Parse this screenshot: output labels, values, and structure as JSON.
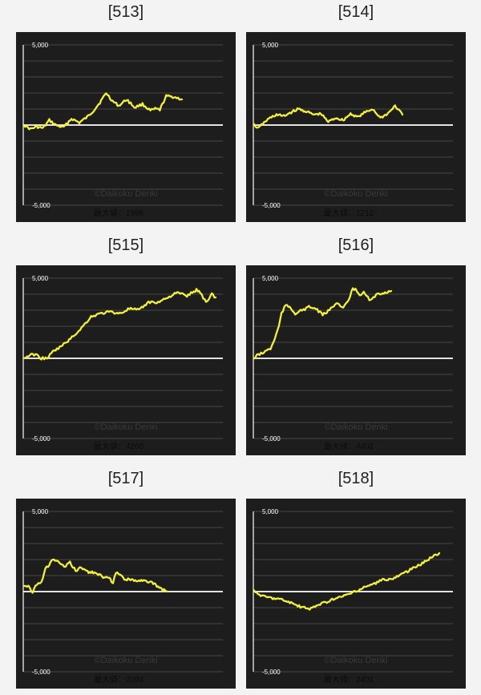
{
  "colors": {
    "background": "#f3f3f3",
    "panel": "#1d1d1d",
    "grid": "#474747",
    "zero_line": "#ffffff",
    "axis": "#ffffff",
    "series": "#f2f03c",
    "label_text": "#222222",
    "watermark": "#3a3a3a",
    "footer_text": "#0c0c0c"
  },
  "chart_data": [
    {
      "type": "line",
      "label": "[513]",
      "watermark": "©Daikoku Denki",
      "footer": "最大値：1998",
      "tick_labels": [
        "5,000",
        "-5,000"
      ],
      "ylim": [
        -5000,
        5000
      ],
      "x": [
        0,
        4,
        8,
        12,
        16,
        20,
        25,
        30,
        35,
        40,
        44,
        48,
        52,
        56,
        60,
        65,
        70,
        75,
        80,
        83,
        86,
        90,
        95,
        100
      ],
      "y": [
        0,
        -250,
        -100,
        -200,
        300,
        0,
        -150,
        400,
        150,
        500,
        900,
        1400,
        1998,
        1500,
        1200,
        1600,
        1100,
        1300,
        900,
        1000,
        950,
        1800,
        1750,
        1600
      ]
    },
    {
      "type": "line",
      "label": "[514]",
      "watermark": "©Daikoku Denki",
      "footer": "最大値：1212",
      "tick_labels": [
        "5,000",
        "-5,000"
      ],
      "ylim": [
        -5000,
        5000
      ],
      "x": [
        0,
        3,
        6,
        10,
        15,
        20,
        25,
        30,
        35,
        40,
        45,
        50,
        55,
        60,
        65,
        70,
        75,
        80,
        85,
        90,
        95,
        100
      ],
      "y": [
        0,
        -200,
        100,
        400,
        650,
        550,
        800,
        1000,
        850,
        650,
        700,
        200,
        450,
        300,
        700,
        500,
        800,
        1000,
        450,
        700,
        1200,
        650
      ]
    },
    {
      "type": "line",
      "label": "[515]",
      "watermark": "©Daikoku Denki",
      "footer": "最大値：4260",
      "tick_labels": [
        "5,000",
        "-5,000"
      ],
      "ylim": [
        -5000,
        5000
      ],
      "x": [
        0,
        3,
        6,
        9,
        12,
        15,
        20,
        25,
        30,
        35,
        40,
        45,
        50,
        55,
        60,
        65,
        70,
        75,
        80,
        85,
        90,
        92,
        95,
        98,
        100
      ],
      "y": [
        0,
        200,
        250,
        0,
        0,
        400,
        800,
        1300,
        1900,
        2600,
        2800,
        2900,
        2800,
        3100,
        3000,
        3500,
        3500,
        3800,
        4100,
        3900,
        4260,
        4100,
        3500,
        4000,
        3800
      ]
    },
    {
      "type": "line",
      "label": "[516]",
      "watermark": "©Daikoku Denki",
      "footer": "最大値：4402",
      "tick_labels": [
        "5,000",
        "-5,000"
      ],
      "ylim": [
        -5000,
        5000
      ],
      "x": [
        0,
        3,
        6,
        9,
        12,
        15,
        18,
        20,
        23,
        26,
        30,
        35,
        40,
        45,
        50,
        55,
        60,
        65,
        70,
        72,
        75,
        78,
        80,
        85,
        90,
        100
      ],
      "y": [
        0,
        250,
        300,
        500,
        600,
        1200,
        2000,
        2800,
        3300,
        3200,
        2800,
        3000,
        3200,
        3100,
        2700,
        3000,
        3500,
        3100,
        3800,
        4402,
        4200,
        3900,
        4100,
        3600,
        4000,
        4200
      ]
    },
    {
      "type": "line",
      "label": "[517]",
      "watermark": "©Daikoku Denki",
      "footer": "最大値：2094",
      "tick_labels": [
        "5,000",
        "-5,000"
      ],
      "ylim": [
        -5000,
        5000
      ],
      "x": [
        0,
        3,
        6,
        9,
        12,
        15,
        20,
        25,
        28,
        32,
        36,
        40,
        45,
        50,
        55,
        60,
        62,
        64,
        66,
        70,
        75,
        80,
        85,
        90,
        95,
        100
      ],
      "y": [
        400,
        300,
        0,
        500,
        600,
        1400,
        2000,
        1800,
        1500,
        1800,
        1300,
        1500,
        1200,
        1200,
        900,
        800,
        500,
        1200,
        1100,
        800,
        700,
        700,
        700,
        500,
        200,
        0
      ]
    },
    {
      "type": "line",
      "label": "[518]",
      "watermark": "©Daikoku Denki",
      "footer": "最大値：2401",
      "tick_labels": [
        "5,000",
        "-5,000"
      ],
      "ylim": [
        -5000,
        5000
      ],
      "x": [
        0,
        5,
        10,
        15,
        20,
        25,
        30,
        35,
        40,
        45,
        50,
        55,
        60,
        65,
        70,
        75,
        80,
        85,
        90,
        95,
        100
      ],
      "y": [
        0,
        -300,
        -400,
        -500,
        -700,
        -950,
        -1100,
        -800,
        -600,
        -400,
        -200,
        0,
        300,
        500,
        750,
        800,
        1100,
        1400,
        1700,
        2100,
        2401
      ]
    }
  ]
}
